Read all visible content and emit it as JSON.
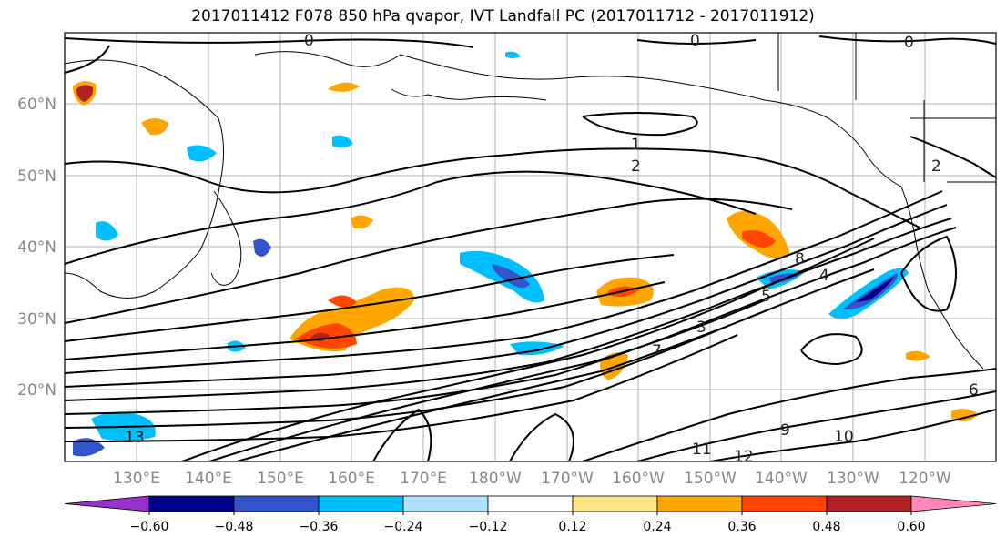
{
  "title": "2017011412 F078 850 hPa qvapor, IVT Landfall PC (2017011712 - 2017011912)",
  "axes": {
    "lat_labels": [
      "60°N",
      "50°N",
      "40°N",
      "30°N",
      "20°N"
    ],
    "lon_labels": [
      "130°E",
      "140°E",
      "150°E",
      "160°E",
      "170°E",
      "180°W",
      "170°W",
      "160°W",
      "150°W",
      "140°W",
      "130°W",
      "120°W"
    ]
  },
  "colorbar": {
    "colors": [
      "#9932cc",
      "#00008b",
      "#3355cc",
      "#00bfff",
      "#b0e2ff",
      "#ffffff",
      "#ffe680",
      "#ffa500",
      "#ff4500",
      "#b22222",
      "#ff88bb"
    ],
    "tick_labels": [
      "−0.60",
      "−0.48",
      "−0.36",
      "−0.24",
      "−0.12",
      "0.12",
      "0.24",
      "0.36",
      "0.48",
      "0.60"
    ]
  },
  "contour_labels": [
    "0",
    "0",
    "0",
    "1",
    "2",
    "2",
    "3",
    "4",
    "5",
    "6",
    "7",
    "8",
    "9",
    "10",
    "11",
    "12",
    "13"
  ]
}
